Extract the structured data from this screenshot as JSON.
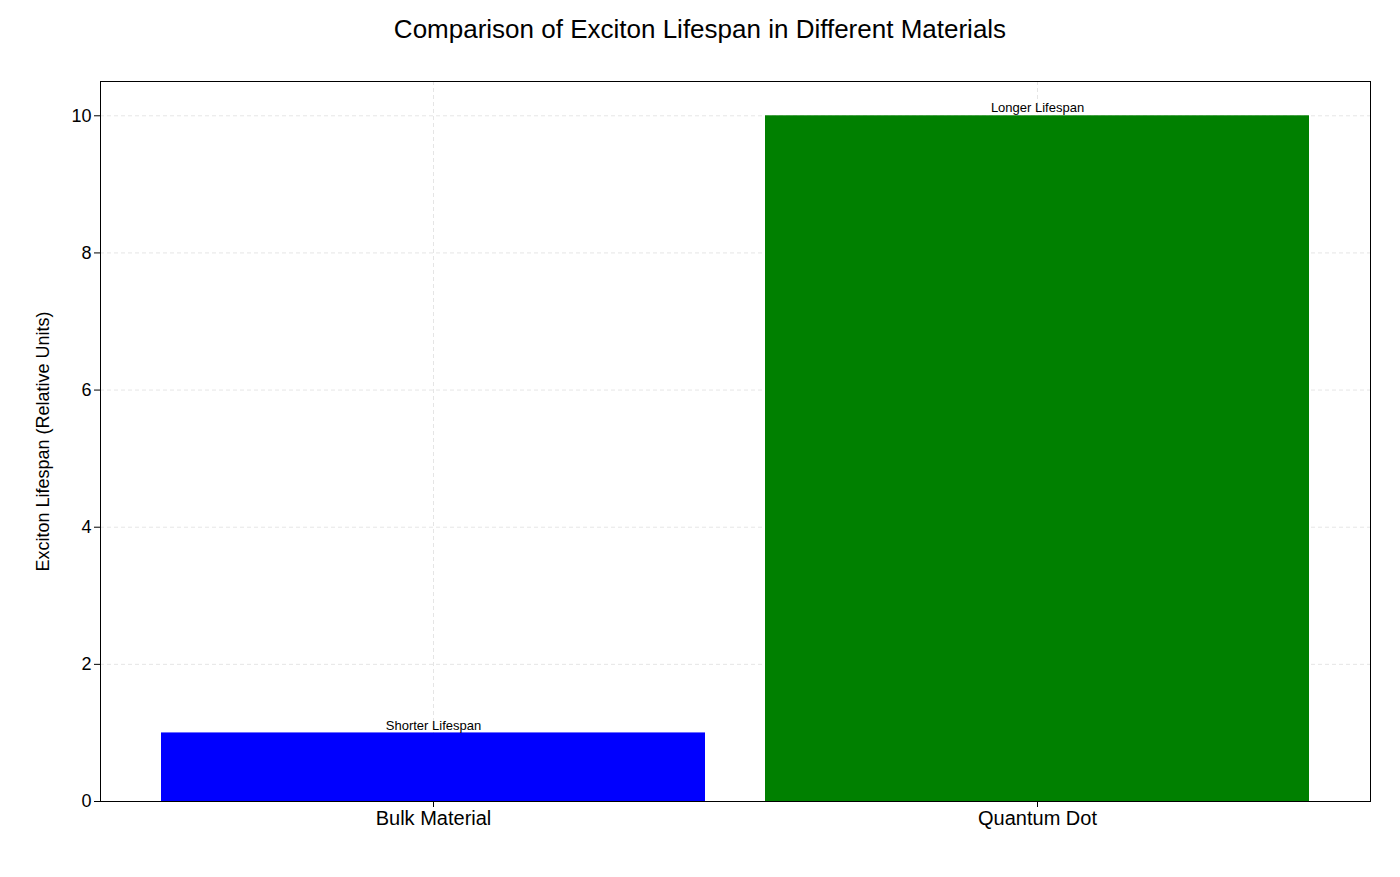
{
  "chart_data": {
    "type": "bar",
    "title": "Comparison of Exciton Lifespan in Different Materials",
    "categories": [
      "Bulk Material",
      "Quantum Dot"
    ],
    "values": [
      1,
      10
    ],
    "colors": [
      "#0000ff",
      "#008000"
    ],
    "ylabel": "Exciton Lifespan (Relative Units)",
    "ylim": [
      0,
      10.5
    ],
    "yticks": [
      0,
      2,
      4,
      6,
      8,
      10
    ],
    "grid": true,
    "annotations": [
      {
        "text": "Shorter Lifespan",
        "x": "Bulk Material",
        "y": 1.05
      },
      {
        "text": "Longer Lifespan",
        "x": "Quantum Dot",
        "y": 10.05
      }
    ]
  }
}
